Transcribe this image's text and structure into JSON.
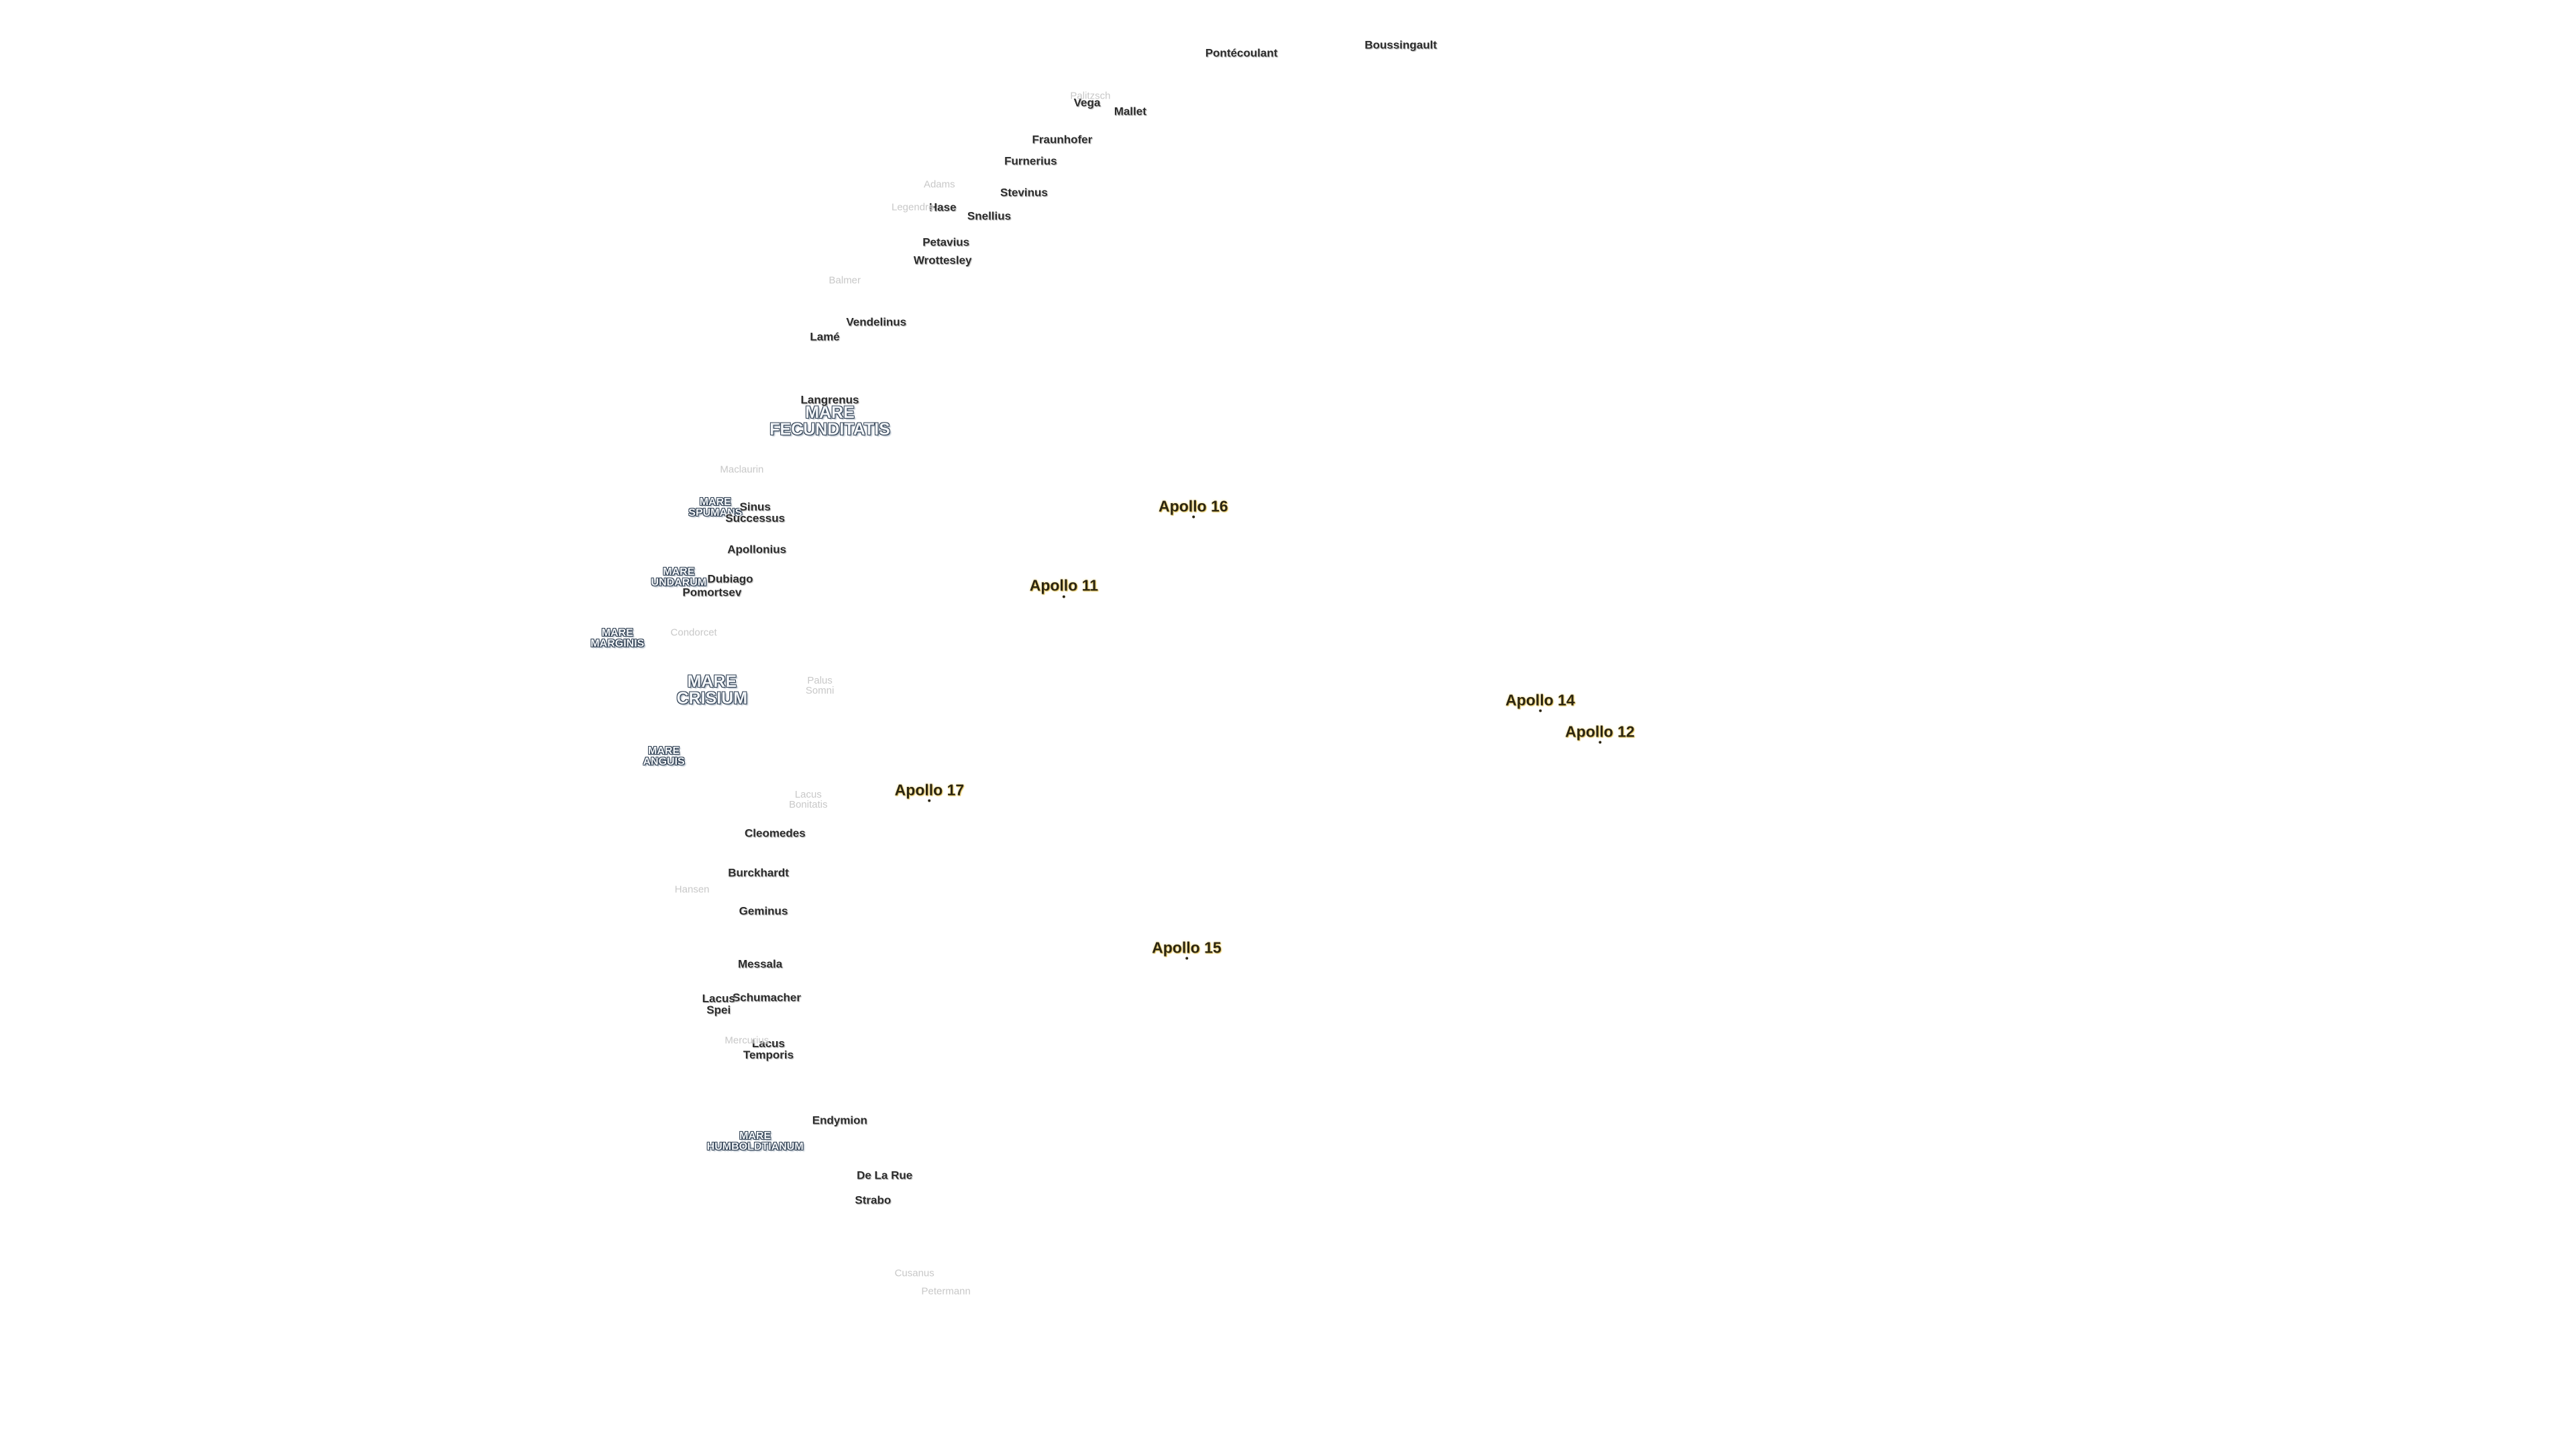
{
  "maria": [
    "MARE FECUNDITATIS",
    "MARE SPUMANS",
    "MARE UNDARUM",
    "MARE MARGINIS",
    "MARE CRISIUM",
    "MARE ANGUIS",
    "MARE HUMBOLDTIANUM"
  ],
  "craters": [
    "Boussingault",
    "Pontécoulant",
    "Vega",
    "Mallet",
    "Fraunhofer",
    "Furnerius",
    "Stevinus",
    "Hase",
    "Snellius",
    "Petavius",
    "Wrottesley",
    "Vendelinus",
    "Lamé",
    "Langrenus",
    "Sinus Successus",
    "Apollonius",
    "Dubiago",
    "Pomortsev",
    "Cleomedes",
    "Burckhardt",
    "Geminus",
    "Messala",
    "Schumacher",
    "Lacus Spei",
    "Lacus Temporis",
    "Endymion",
    "De La Rue",
    "Strabo"
  ],
  "faint_features": [
    "Palitzsch",
    "Adams",
    "Legendre",
    "Balmer",
    "Maclaurin",
    "Condorcet",
    "Palus Somni",
    "Lacus Bonitatis",
    "Hansen",
    "Mercurius",
    "Cusanus",
    "Petermann"
  ],
  "landing_sites": [
    "Apollo 16",
    "Apollo 11",
    "Apollo 14",
    "Apollo 12",
    "Apollo 17",
    "Apollo 15"
  ]
}
